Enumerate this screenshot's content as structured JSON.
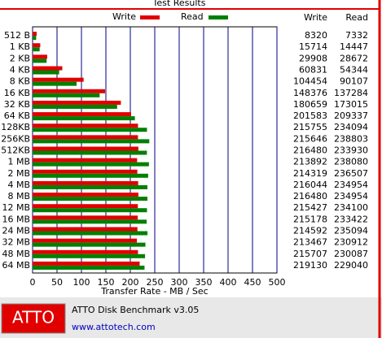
{
  "chart_data": {
    "type": "bar",
    "orientation": "horizontal",
    "title": "Test Results",
    "x_label": "Transfer Rate - MB / Sec",
    "categories": [
      "512 B",
      "1 KB",
      "2 KB",
      "4 KB",
      "8 KB",
      "16 KB",
      "32 KB",
      "64 KB",
      "128KB",
      "256KB",
      "512KB",
      "1 MB",
      "2 MB",
      "4 MB",
      "8 MB",
      "12 MB",
      "16 MB",
      "24 MB",
      "32 MB",
      "48 MB",
      "64 MB"
    ],
    "series": [
      {
        "name": "Write",
        "color": "#e00000",
        "values": [
          8.32,
          15.714,
          29.908,
          60.831,
          104.454,
          148.376,
          180.659,
          201.583,
          215.755,
          215.646,
          216.48,
          213.892,
          214.319,
          216.044,
          216.48,
          215.427,
          215.178,
          214.592,
          213.467,
          215.707,
          219.13
        ],
        "value_labels": [
          "8320",
          "15714",
          "29908",
          "60831",
          "104454",
          "148376",
          "180659",
          "201583",
          "215755",
          "215646",
          "216480",
          "213892",
          "214319",
          "216044",
          "216480",
          "215427",
          "215178",
          "214592",
          "213467",
          "215707",
          "219130"
        ]
      },
      {
        "name": "Read",
        "color": "#008000",
        "values": [
          7.332,
          14.447,
          28.672,
          54.344,
          90.107,
          137.284,
          173.015,
          209.337,
          234.094,
          238.803,
          233.93,
          238.08,
          236.507,
          234.954,
          234.954,
          234.1,
          233.422,
          235.094,
          230.912,
          230.087,
          229.04
        ],
        "value_labels": [
          "7332",
          "14447",
          "28672",
          "54344",
          "90107",
          "137284",
          "173015",
          "209337",
          "234094",
          "238803",
          "233930",
          "238080",
          "236507",
          "234954",
          "234954",
          "234100",
          "233422",
          "235094",
          "230912",
          "230087",
          "229040"
        ]
      }
    ],
    "xlim": [
      0,
      500
    ],
    "xticks": [
      0,
      50,
      100,
      150,
      200,
      250,
      300,
      350,
      400,
      450,
      500
    ],
    "grid": true
  },
  "footer": {
    "logo": "ATTO",
    "product": "ATTO Disk Benchmark v3.05",
    "url": "www.attotech.com"
  }
}
